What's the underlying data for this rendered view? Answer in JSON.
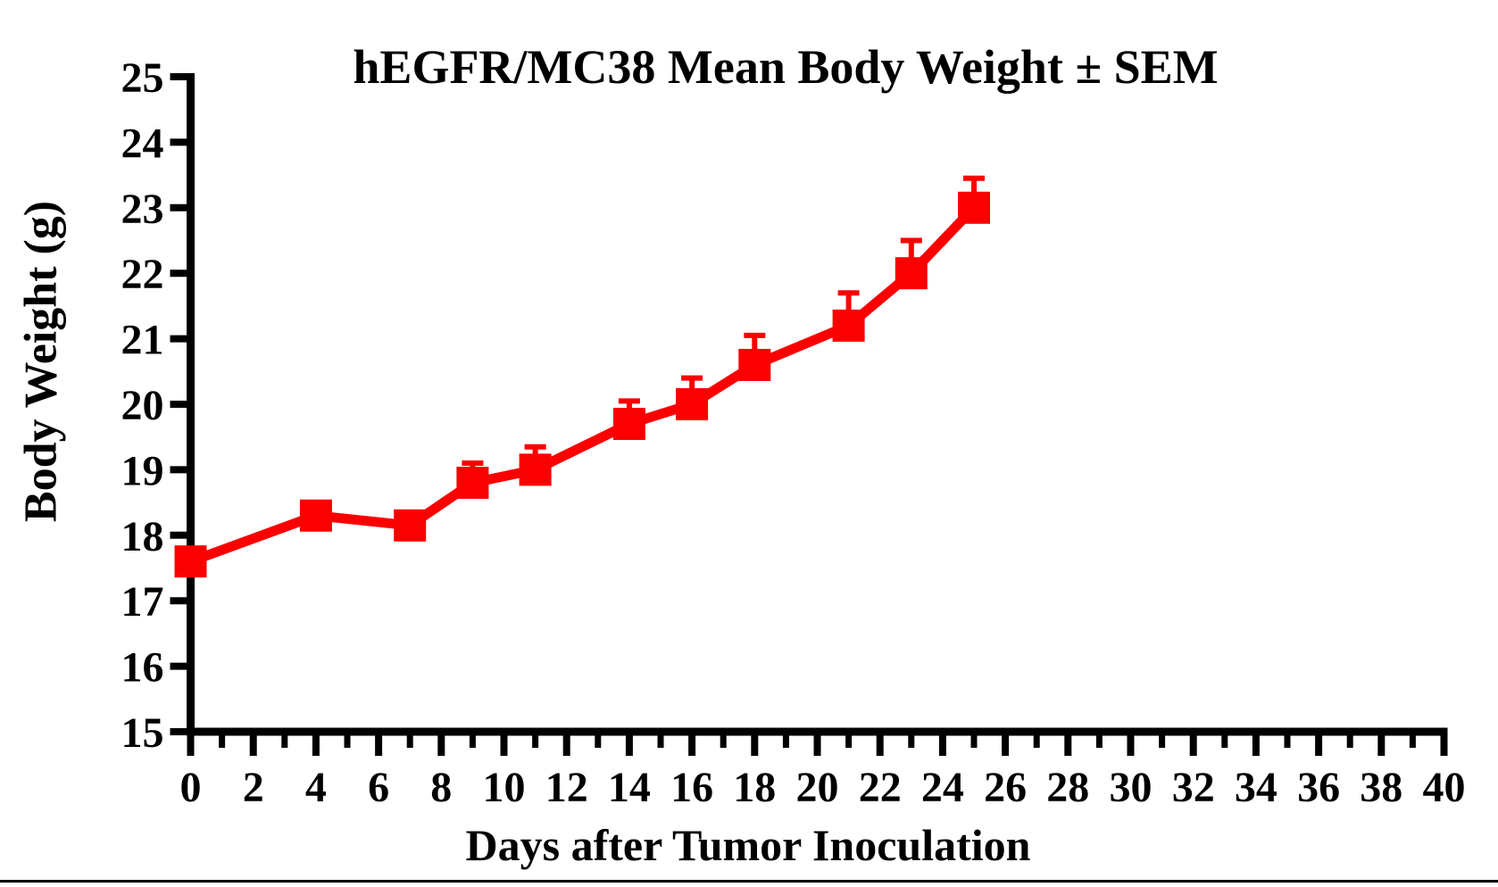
{
  "page_title": "hEGFR/MC38 Mean Body Weight ± SEM",
  "chart_data": {
    "type": "line",
    "title": "hEGFR/MC38 Mean Body Weight ± SEM",
    "xlabel": "Days after Tumor Inoculation",
    "ylabel": "Body Weight (g)",
    "x": [
      0,
      4,
      7,
      9,
      11,
      14,
      16,
      18,
      21,
      23,
      25
    ],
    "series": [
      {
        "name": "hEGFR/MC38 mean body weight",
        "values": [
          17.6,
          18.3,
          18.15,
          18.8,
          19.0,
          19.7,
          20.0,
          20.6,
          21.2,
          22.0,
          23.0
        ],
        "sem_upper": [
          0,
          0,
          0,
          0.3,
          0.35,
          0.35,
          0.4,
          0.45,
          0.5,
          0.5,
          0.45
        ],
        "color": "#fa0000",
        "marker": "square"
      }
    ],
    "xlim": [
      0,
      40
    ],
    "ylim": [
      15,
      25
    ],
    "x_tick_labels": [
      "0",
      "2",
      "4",
      "6",
      "8",
      "10",
      "12",
      "14",
      "16",
      "18",
      "20",
      "22",
      "24",
      "26",
      "28",
      "30",
      "32",
      "34",
      "36",
      "38",
      "40"
    ],
    "y_tick_labels": [
      "15",
      "16",
      "17",
      "18",
      "19",
      "20",
      "21",
      "22",
      "23",
      "24",
      "25"
    ],
    "x_minor_ticks_at_odd_days": true,
    "grid": false,
    "legend": "none",
    "error_bars": "upper SEM caps only"
  },
  "colors": {
    "series": "#fa0000",
    "axis": "#000000",
    "background": "#ffffff",
    "text": "#000000"
  }
}
